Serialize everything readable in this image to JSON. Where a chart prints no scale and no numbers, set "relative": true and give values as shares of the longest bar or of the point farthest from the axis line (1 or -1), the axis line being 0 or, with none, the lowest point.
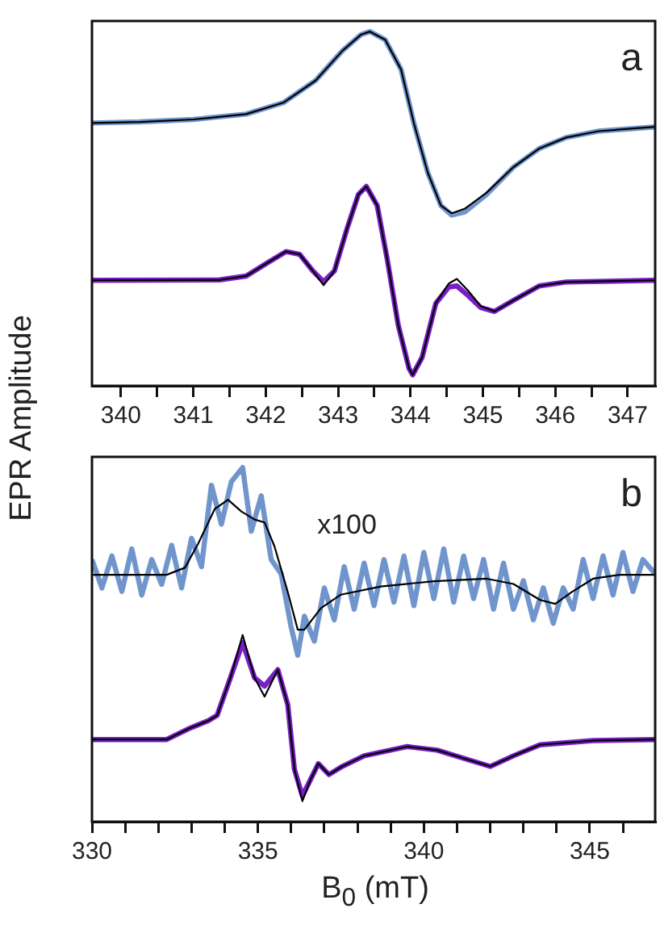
{
  "chart_data": [
    {
      "type": "line",
      "relative": true,
      "ylabel": "EPR Amplitude",
      "legend": false,
      "grid": false,
      "tick_labels": "x",
      "annotations": [
        "a"
      ],
      "xlim": [
        339.6,
        347.38
      ],
      "xticks": [
        340,
        {
          "value": 340.5,
          "label": null
        },
        341,
        {
          "value": 341.5,
          "label": null
        },
        342,
        {
          "value": 342.5,
          "label": null
        },
        343,
        {
          "value": 343.5,
          "label": null
        },
        344,
        {
          "value": 344.5,
          "label": null
        },
        345,
        {
          "value": 345.5,
          "label": null
        },
        346,
        {
          "value": 346.5,
          "label": null
        },
        347
      ],
      "series": [
        {
          "color": "#000000",
          "x": [
            339.6,
            340.26,
            341.0,
            341.73,
            342.25,
            342.69,
            343.06,
            343.32,
            343.44,
            343.65,
            343.87,
            344.05,
            344.24,
            344.42,
            344.57,
            344.75,
            345.05,
            345.42,
            345.78,
            346.15,
            346.6,
            347.38
          ],
          "values": [
            0.742,
            0.745,
            0.752,
            0.767,
            0.8,
            0.862,
            0.946,
            0.992,
            1.0,
            0.977,
            0.893,
            0.739,
            0.601,
            0.509,
            0.487,
            0.5,
            0.545,
            0.617,
            0.67,
            0.701,
            0.719,
            0.731
          ]
        },
        {
          "color": "#7095cc",
          "x": [
            339.6,
            340.26,
            341.0,
            341.73,
            342.25,
            342.69,
            343.06,
            343.32,
            343.44,
            343.65,
            343.87,
            344.05,
            344.24,
            344.42,
            344.57,
            344.75,
            345.05,
            345.42,
            345.78,
            346.15,
            346.6,
            347.38
          ],
          "values": [
            0.742,
            0.745,
            0.752,
            0.767,
            0.8,
            0.862,
            0.946,
            0.992,
            1.0,
            0.977,
            0.893,
            0.739,
            0.601,
            0.509,
            0.482,
            0.491,
            0.54,
            0.617,
            0.67,
            0.701,
            0.719,
            0.731
          ]
        },
        {
          "color": "#000000",
          "x": [
            339.6,
            341.36,
            341.73,
            342.03,
            342.28,
            342.47,
            342.65,
            342.8,
            342.95,
            343.13,
            343.28,
            343.39,
            343.54,
            343.68,
            343.83,
            343.98,
            344.03,
            344.16,
            344.35,
            344.53,
            344.64,
            344.79,
            344.97,
            345.16,
            345.42,
            345.78,
            346.15,
            347.38
          ],
          "values": [
            0.298,
            0.299,
            0.31,
            0.348,
            0.379,
            0.371,
            0.325,
            0.284,
            0.325,
            0.448,
            0.54,
            0.563,
            0.509,
            0.356,
            0.172,
            0.049,
            0.031,
            0.08,
            0.233,
            0.289,
            0.302,
            0.27,
            0.225,
            0.21,
            0.241,
            0.282,
            0.293,
            0.298
          ]
        },
        {
          "color": "#7a1fc8",
          "x": [
            339.6,
            341.36,
            341.73,
            342.03,
            342.28,
            342.47,
            342.65,
            342.8,
            342.95,
            343.13,
            343.28,
            343.39,
            343.54,
            343.68,
            343.83,
            343.98,
            344.03,
            344.16,
            344.35,
            344.53,
            344.64,
            344.79,
            344.97,
            345.16,
            345.42,
            345.78,
            346.15,
            347.38
          ],
          "values": [
            0.298,
            0.299,
            0.31,
            0.348,
            0.379,
            0.371,
            0.325,
            0.294,
            0.325,
            0.448,
            0.54,
            0.563,
            0.509,
            0.356,
            0.172,
            0.049,
            0.031,
            0.08,
            0.233,
            0.279,
            0.282,
            0.256,
            0.221,
            0.21,
            0.241,
            0.282,
            0.293,
            0.298
          ]
        }
      ]
    },
    {
      "type": "line",
      "relative": true,
      "xlabel": "B$_{0}$ (mT)",
      "legend": false,
      "grid": false,
      "tick_labels": "x",
      "annotations": [
        "b",
        "x100"
      ],
      "xlim": [
        330,
        346.97
      ],
      "xticks": [
        330,
        {
          "value": 331,
          "label": null
        },
        {
          "value": 332,
          "label": null
        },
        {
          "value": 333,
          "label": null
        },
        {
          "value": 334,
          "label": null
        },
        335,
        {
          "value": 336,
          "label": null
        },
        {
          "value": 337,
          "label": null
        },
        {
          "value": 338,
          "label": null
        },
        {
          "value": 339,
          "label": null
        },
        340,
        {
          "value": 341,
          "label": null
        },
        {
          "value": 342,
          "label": null
        },
        {
          "value": 343,
          "label": null
        },
        {
          "value": 344,
          "label": null
        },
        345,
        {
          "value": 346,
          "label": null
        }
      ],
      "series": [
        {
          "color": "#7095cc",
          "x": [
            330.0,
            330.3,
            330.6,
            330.9,
            331.2,
            331.5,
            331.8,
            332.1,
            332.4,
            332.7,
            333.0,
            333.3,
            333.6,
            333.9,
            334.2,
            334.54,
            334.8,
            335.1,
            335.4,
            335.7,
            336.0,
            336.2,
            336.4,
            336.7,
            337.0,
            337.3,
            337.6,
            337.9,
            338.2,
            338.5,
            338.8,
            339.1,
            339.4,
            339.7,
            340.0,
            340.3,
            340.6,
            340.9,
            341.2,
            341.5,
            341.8,
            342.1,
            342.4,
            342.7,
            343.0,
            343.3,
            343.6,
            343.9,
            344.2,
            344.5,
            344.8,
            345.1,
            345.4,
            345.7,
            346.0,
            346.3,
            346.6,
            346.97
          ],
          "values": [
            0.74,
            0.66,
            0.75,
            0.65,
            0.77,
            0.64,
            0.74,
            0.67,
            0.78,
            0.66,
            0.8,
            0.72,
            0.95,
            0.84,
            0.96,
            1.0,
            0.82,
            0.92,
            0.74,
            0.7,
            0.55,
            0.47,
            0.58,
            0.51,
            0.66,
            0.57,
            0.72,
            0.6,
            0.73,
            0.61,
            0.74,
            0.62,
            0.75,
            0.61,
            0.76,
            0.63,
            0.77,
            0.62,
            0.75,
            0.63,
            0.74,
            0.6,
            0.73,
            0.6,
            0.68,
            0.57,
            0.66,
            0.56,
            0.66,
            0.6,
            0.74,
            0.63,
            0.75,
            0.64,
            0.76,
            0.65,
            0.74,
            0.7
          ]
        },
        {
          "color": "#000000",
          "x": [
            330.0,
            332.25,
            332.8,
            333.2,
            333.7,
            334.1,
            334.5,
            334.9,
            335.2,
            335.5,
            335.9,
            336.2,
            336.4,
            336.9,
            337.5,
            338.7,
            340.3,
            341.9,
            342.7,
            343.5,
            343.96,
            344.45,
            345.1,
            345.9,
            346.97
          ],
          "values": [
            0.697,
            0.697,
            0.717,
            0.785,
            0.883,
            0.909,
            0.876,
            0.853,
            0.845,
            0.777,
            0.648,
            0.542,
            0.542,
            0.603,
            0.641,
            0.664,
            0.679,
            0.686,
            0.671,
            0.626,
            0.615,
            0.648,
            0.686,
            0.697,
            0.697
          ]
        },
        {
          "color": "#000000",
          "x": [
            330.0,
            332.25,
            332.9,
            333.5,
            333.77,
            334.17,
            334.54,
            334.9,
            335.2,
            335.6,
            335.9,
            336.1,
            336.34,
            336.58,
            336.82,
            337.14,
            337.54,
            338.2,
            339.5,
            340.4,
            341.2,
            342.0,
            342.7,
            343.5,
            345.1,
            346.97
          ],
          "values": [
            0.232,
            0.232,
            0.262,
            0.285,
            0.3,
            0.406,
            0.527,
            0.406,
            0.353,
            0.429,
            0.33,
            0.148,
            0.058,
            0.118,
            0.164,
            0.133,
            0.156,
            0.186,
            0.212,
            0.202,
            0.179,
            0.156,
            0.186,
            0.217,
            0.229,
            0.232
          ]
        },
        {
          "color": "#7a1fc8",
          "x": [
            330.0,
            332.25,
            332.9,
            333.5,
            333.77,
            334.17,
            334.54,
            334.9,
            335.2,
            335.6,
            335.9,
            336.1,
            336.34,
            336.58,
            336.82,
            337.14,
            337.54,
            338.2,
            339.5,
            340.4,
            341.2,
            342.0,
            342.7,
            343.5,
            345.1,
            346.97
          ],
          "values": [
            0.232,
            0.232,
            0.262,
            0.285,
            0.3,
            0.406,
            0.505,
            0.406,
            0.383,
            0.429,
            0.33,
            0.148,
            0.073,
            0.118,
            0.164,
            0.133,
            0.156,
            0.186,
            0.212,
            0.202,
            0.179,
            0.156,
            0.186,
            0.217,
            0.229,
            0.232
          ]
        }
      ]
    }
  ]
}
